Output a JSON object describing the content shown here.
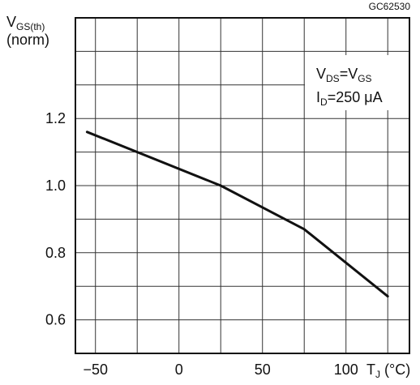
{
  "chart_data": {
    "type": "line",
    "figure_code": "GC62530",
    "y_axis_label": {
      "main": "V",
      "sub": "GS(th)",
      "line2": "(norm)"
    },
    "x_axis_label": {
      "main": "T",
      "sub": "J",
      "unit": " (°C)"
    },
    "annotation": {
      "line1": {
        "v1": "V",
        "s1": "DS",
        "eq": "=",
        "v2": "V",
        "s2": "GS"
      },
      "line2": {
        "v": "I",
        "s": "D",
        "rest": "=250 μA"
      }
    },
    "xlim": [
      -62,
      138
    ],
    "ylim": [
      0.5,
      1.5
    ],
    "x_ticks": [
      -50,
      0,
      50,
      100
    ],
    "x_tick_labels": [
      "−50",
      "0",
      "50",
      "100"
    ],
    "y_ticks": [
      0.6,
      0.8,
      1.0,
      1.2
    ],
    "y_tick_labels": [
      "0.6",
      "0.8",
      "1.0",
      "1.2"
    ],
    "grid": true,
    "series": [
      {
        "x": [
          -55,
          25,
          75,
          125
        ],
        "y": [
          1.16,
          1.0,
          0.87,
          0.67
        ],
        "color": "#111111"
      }
    ]
  }
}
